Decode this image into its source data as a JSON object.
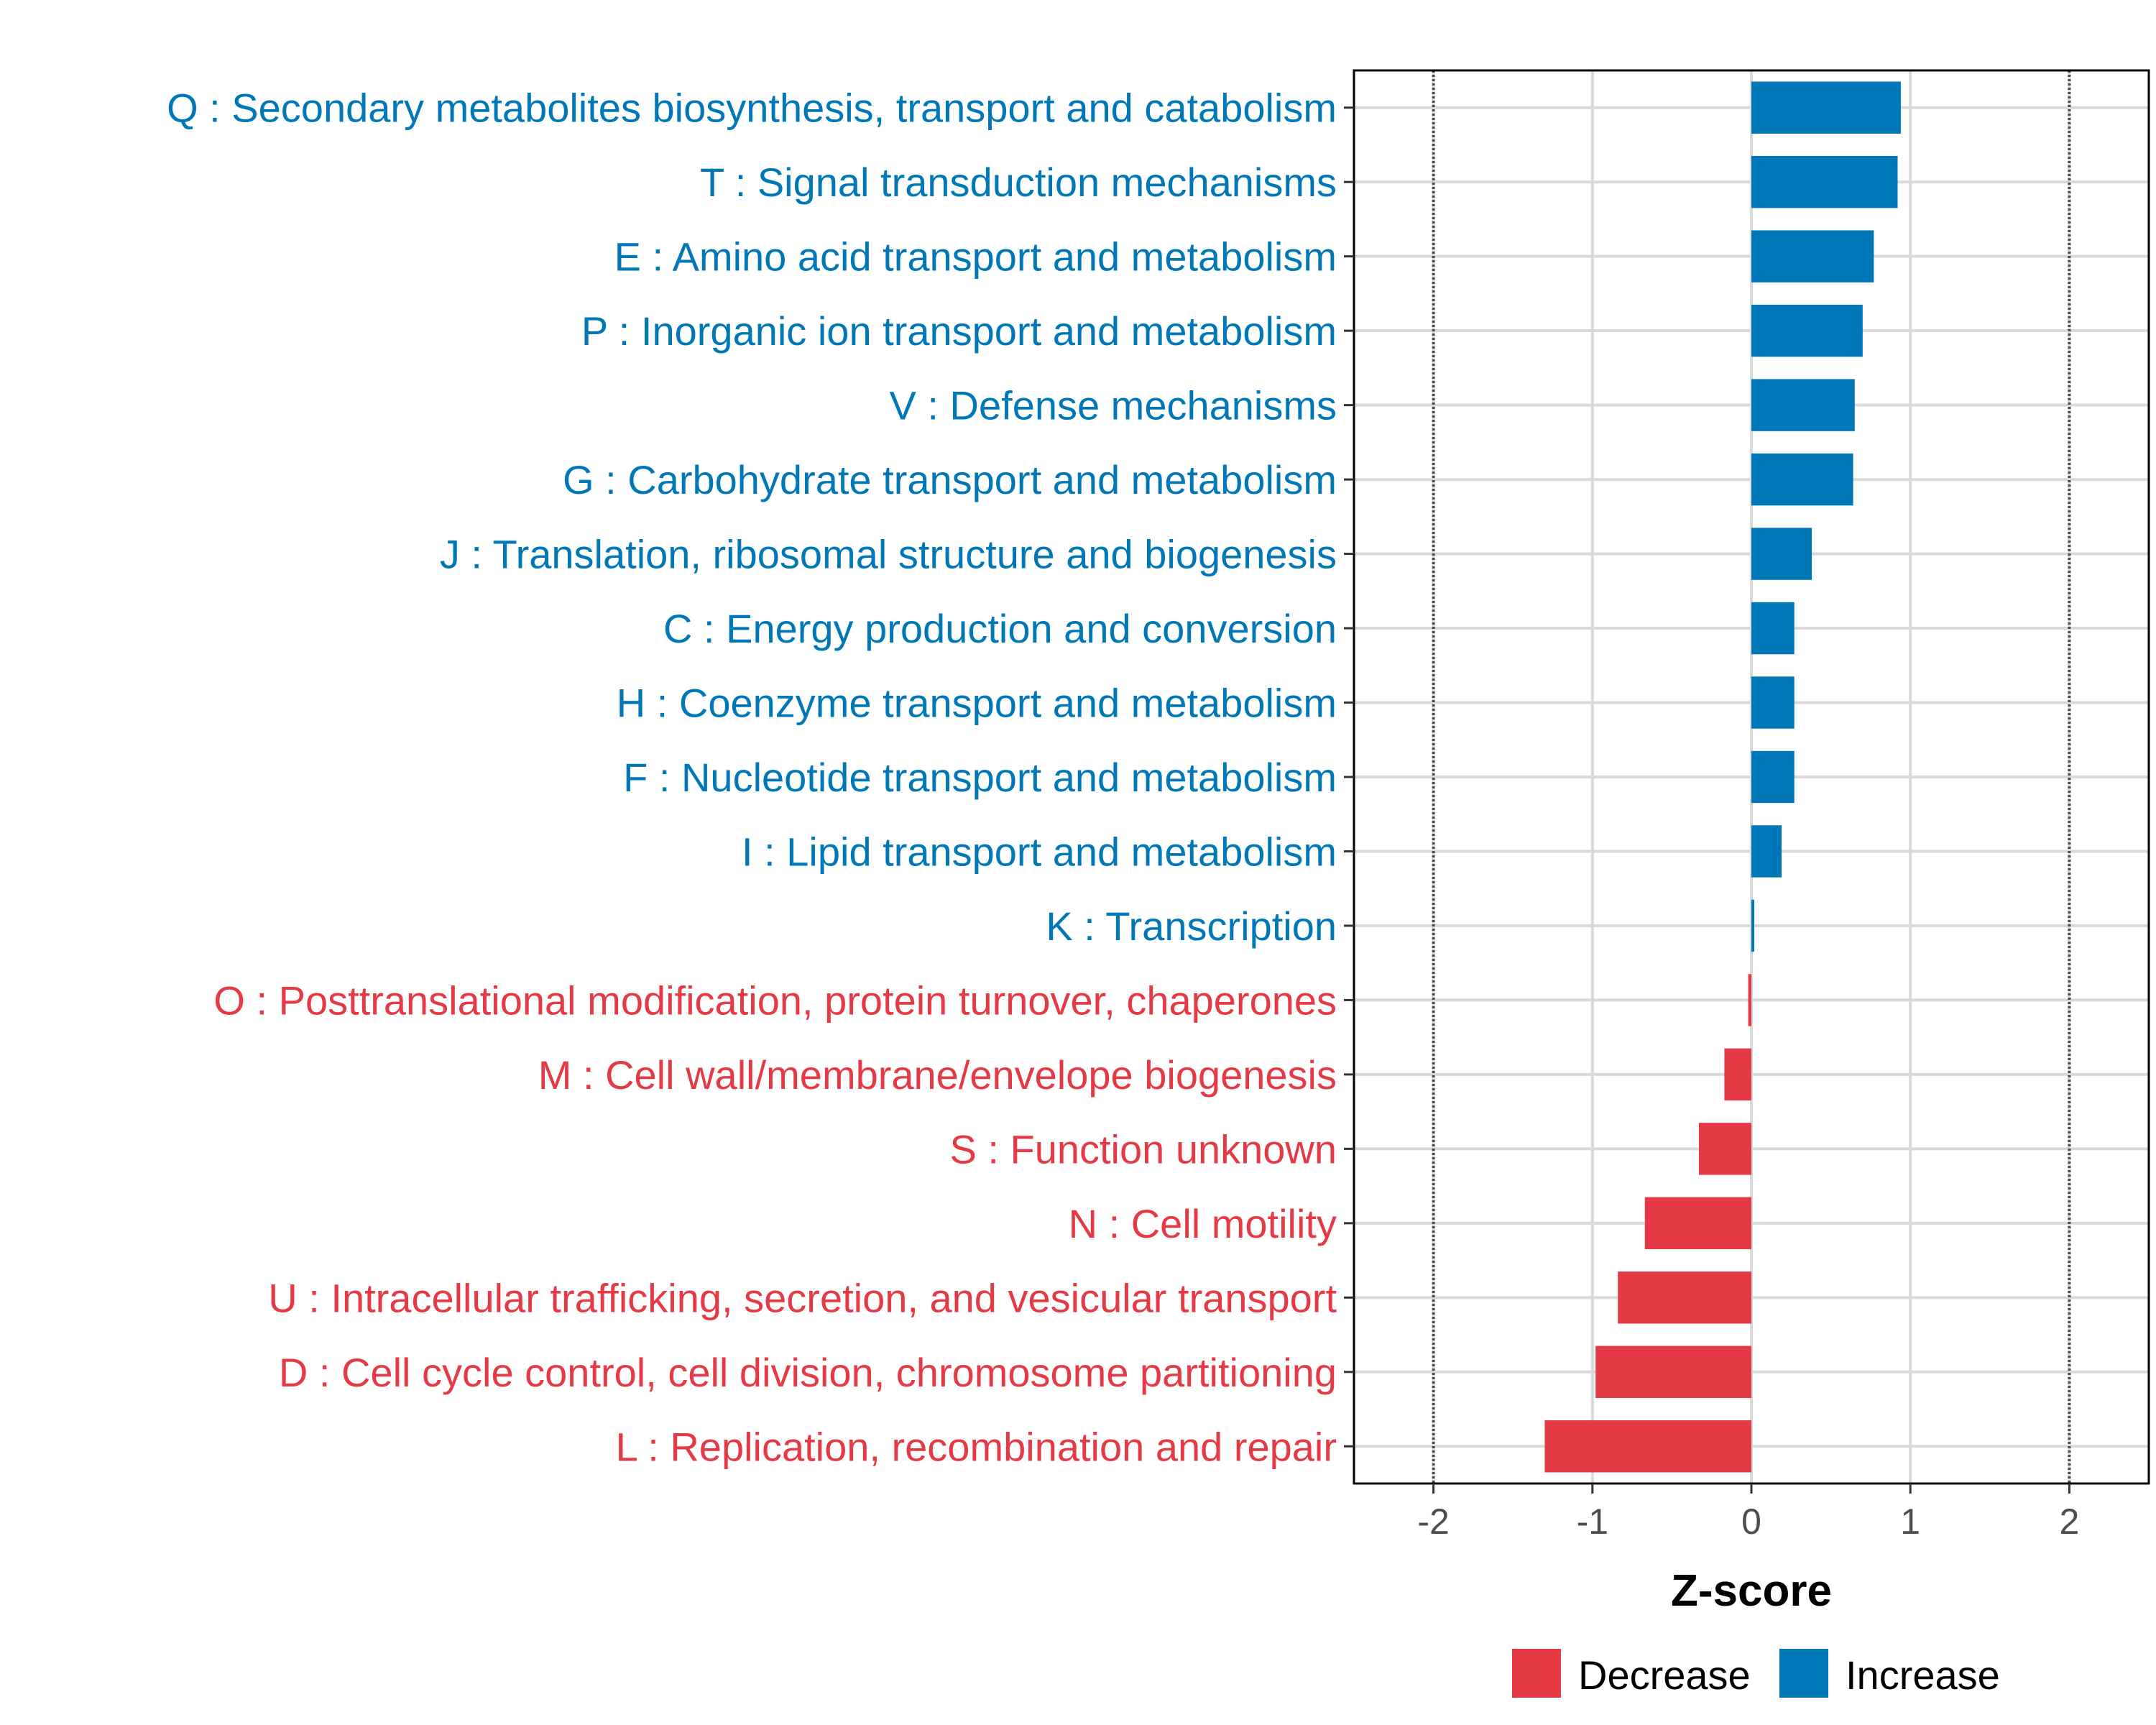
{
  "chart_data": {
    "type": "bar",
    "orientation": "horizontal",
    "title": "",
    "xlabel": "Z-score",
    "ylabel": "",
    "xlim": [
      -2.5,
      2.5
    ],
    "xticks": [
      -2,
      -1,
      0,
      1,
      2
    ],
    "xtick_labels": [
      "-2",
      "-1",
      "0",
      "1",
      "2"
    ],
    "reference_lines": [
      -2,
      2
    ],
    "grid": true,
    "legend_position": "bottom",
    "colors": {
      "Decrease": "#e63946",
      "Increase": "#0077b6"
    },
    "categories": [
      "Q : Secondary metabolites biosynthesis, transport and catabolism",
      "T : Signal transduction mechanisms",
      "E : Amino acid transport and metabolism",
      "P : Inorganic ion transport and metabolism",
      "V : Defense mechanisms",
      "G : Carbohydrate transport and metabolism",
      "J : Translation, ribosomal structure and biogenesis",
      "C : Energy production and conversion",
      "H : Coenzyme transport and metabolism",
      "F : Nucleotide transport and metabolism",
      "I : Lipid transport and metabolism",
      "K : Transcription",
      "O : Posttranslational modification, protein turnover, chaperones",
      "M : Cell wall/membrane/envelope biogenesis",
      "S : Function unknown",
      "N : Cell motility",
      "U : Intracellular trafficking, secretion, and vesicular transport",
      "D : Cell cycle control, cell division, chromosome partitioning",
      "L : Replication, recombination and repair"
    ],
    "values": [
      0.94,
      0.92,
      0.77,
      0.7,
      0.65,
      0.64,
      0.38,
      0.27,
      0.27,
      0.27,
      0.19,
      0.01,
      -0.02,
      -0.17,
      -0.33,
      -0.67,
      -0.84,
      -0.98,
      -1.3
    ],
    "groups": [
      "Increase",
      "Increase",
      "Increase",
      "Increase",
      "Increase",
      "Increase",
      "Increase",
      "Increase",
      "Increase",
      "Increase",
      "Increase",
      "Increase",
      "Decrease",
      "Decrease",
      "Decrease",
      "Decrease",
      "Decrease",
      "Decrease",
      "Decrease"
    ],
    "legend": [
      "Decrease",
      "Increase"
    ]
  }
}
